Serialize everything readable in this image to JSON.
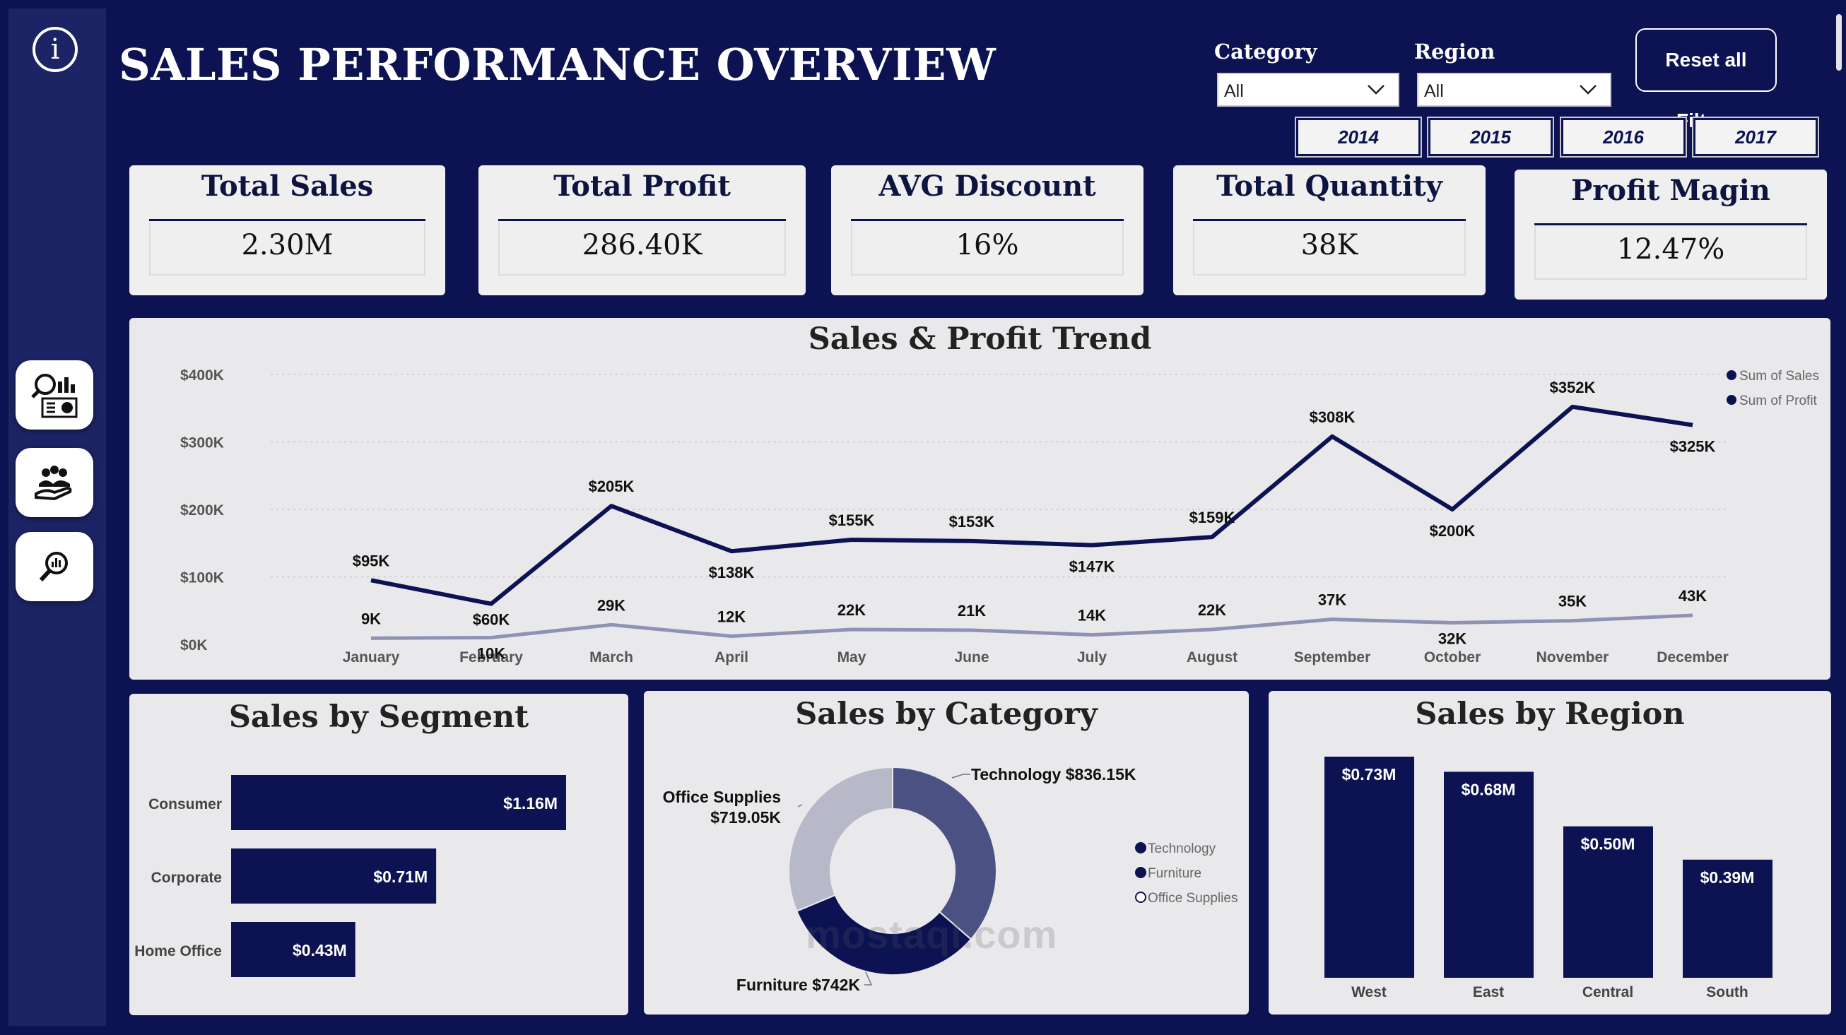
{
  "header": {
    "title": "SALES PERFORMANCE OVERVIEW",
    "info_icon": "info-icon"
  },
  "filters": {
    "category": {
      "label": "Category",
      "value": "All"
    },
    "region": {
      "label": "Region",
      "value": "All"
    },
    "reset_label": "Reset all Filters",
    "years": [
      "2014",
      "2015",
      "2016",
      "2017"
    ]
  },
  "nav": [
    {
      "name": "analytics-dashboard-icon"
    },
    {
      "name": "customers-hand-icon"
    },
    {
      "name": "search-chart-icon"
    }
  ],
  "kpis": [
    {
      "title": "Total Sales",
      "value": "2.30M"
    },
    {
      "title": "Total Profit",
      "value": "286.40K"
    },
    {
      "title": "AVG Discount",
      "value": "16%"
    },
    {
      "title": "Total Quantity",
      "value": "38K"
    },
    {
      "title": "Profit Magin",
      "value": "12.47%"
    }
  ],
  "colors": {
    "navy": "#0c1252",
    "profit_line": "#8f92b3",
    "donut_technology": "#4b5283",
    "donut_furniture": "#0c1252",
    "donut_office": "#b8b9c8"
  },
  "chart_data": [
    {
      "type": "line",
      "title": "Sales & Profit Trend",
      "categories": [
        "January",
        "February",
        "March",
        "April",
        "May",
        "June",
        "July",
        "August",
        "September",
        "October",
        "November",
        "December"
      ],
      "series": [
        {
          "name": "Sum of Sales",
          "values": [
            95,
            60,
            205,
            138,
            155,
            153,
            147,
            159,
            308,
            200,
            352,
            325
          ],
          "labels": [
            "$95K",
            "$60K",
            "$205K",
            "$138K",
            "$155K",
            "$153K",
            "$147K",
            "$159K",
            "$308K",
            "$200K",
            "$352K",
            "$325K"
          ]
        },
        {
          "name": "Sum of Profit",
          "values": [
            9,
            10,
            29,
            12,
            22,
            21,
            14,
            22,
            37,
            32,
            35,
            43
          ],
          "labels": [
            "9K",
            "10K",
            "29K",
            "12K",
            "22K",
            "21K",
            "14K",
            "22K",
            "37K",
            "32K",
            "35K",
            "43K"
          ]
        }
      ],
      "yticks": [
        "$0K",
        "$100K",
        "$200K",
        "$300K",
        "$400K"
      ],
      "ylim": [
        0,
        400
      ],
      "legend": "top-right",
      "grid": true
    },
    {
      "type": "bar",
      "orientation": "horizontal",
      "title": "Sales by Segment",
      "categories": [
        "Consumer",
        "Corporate",
        "Home Office"
      ],
      "values": [
        1.16,
        0.71,
        0.43
      ],
      "labels": [
        "$1.16M",
        "$0.71M",
        "$0.43M"
      ]
    },
    {
      "type": "pie",
      "title": "Sales by Category",
      "categories": [
        "Technology",
        "Furniture",
        "Office Supplies"
      ],
      "values": [
        836.15,
        742,
        719.05
      ],
      "callouts": [
        "Technology $836.15K",
        "Furniture $742K",
        "Office Supplies",
        "$719.05K"
      ],
      "legend": "right"
    },
    {
      "type": "bar",
      "title": "Sales by Region",
      "categories": [
        "West",
        "East",
        "Central",
        "South"
      ],
      "values": [
        0.73,
        0.68,
        0.5,
        0.39
      ],
      "labels": [
        "$0.73M",
        "$0.68M",
        "$0.50M",
        "$0.39M"
      ]
    }
  ],
  "watermark": "mostaql.com"
}
